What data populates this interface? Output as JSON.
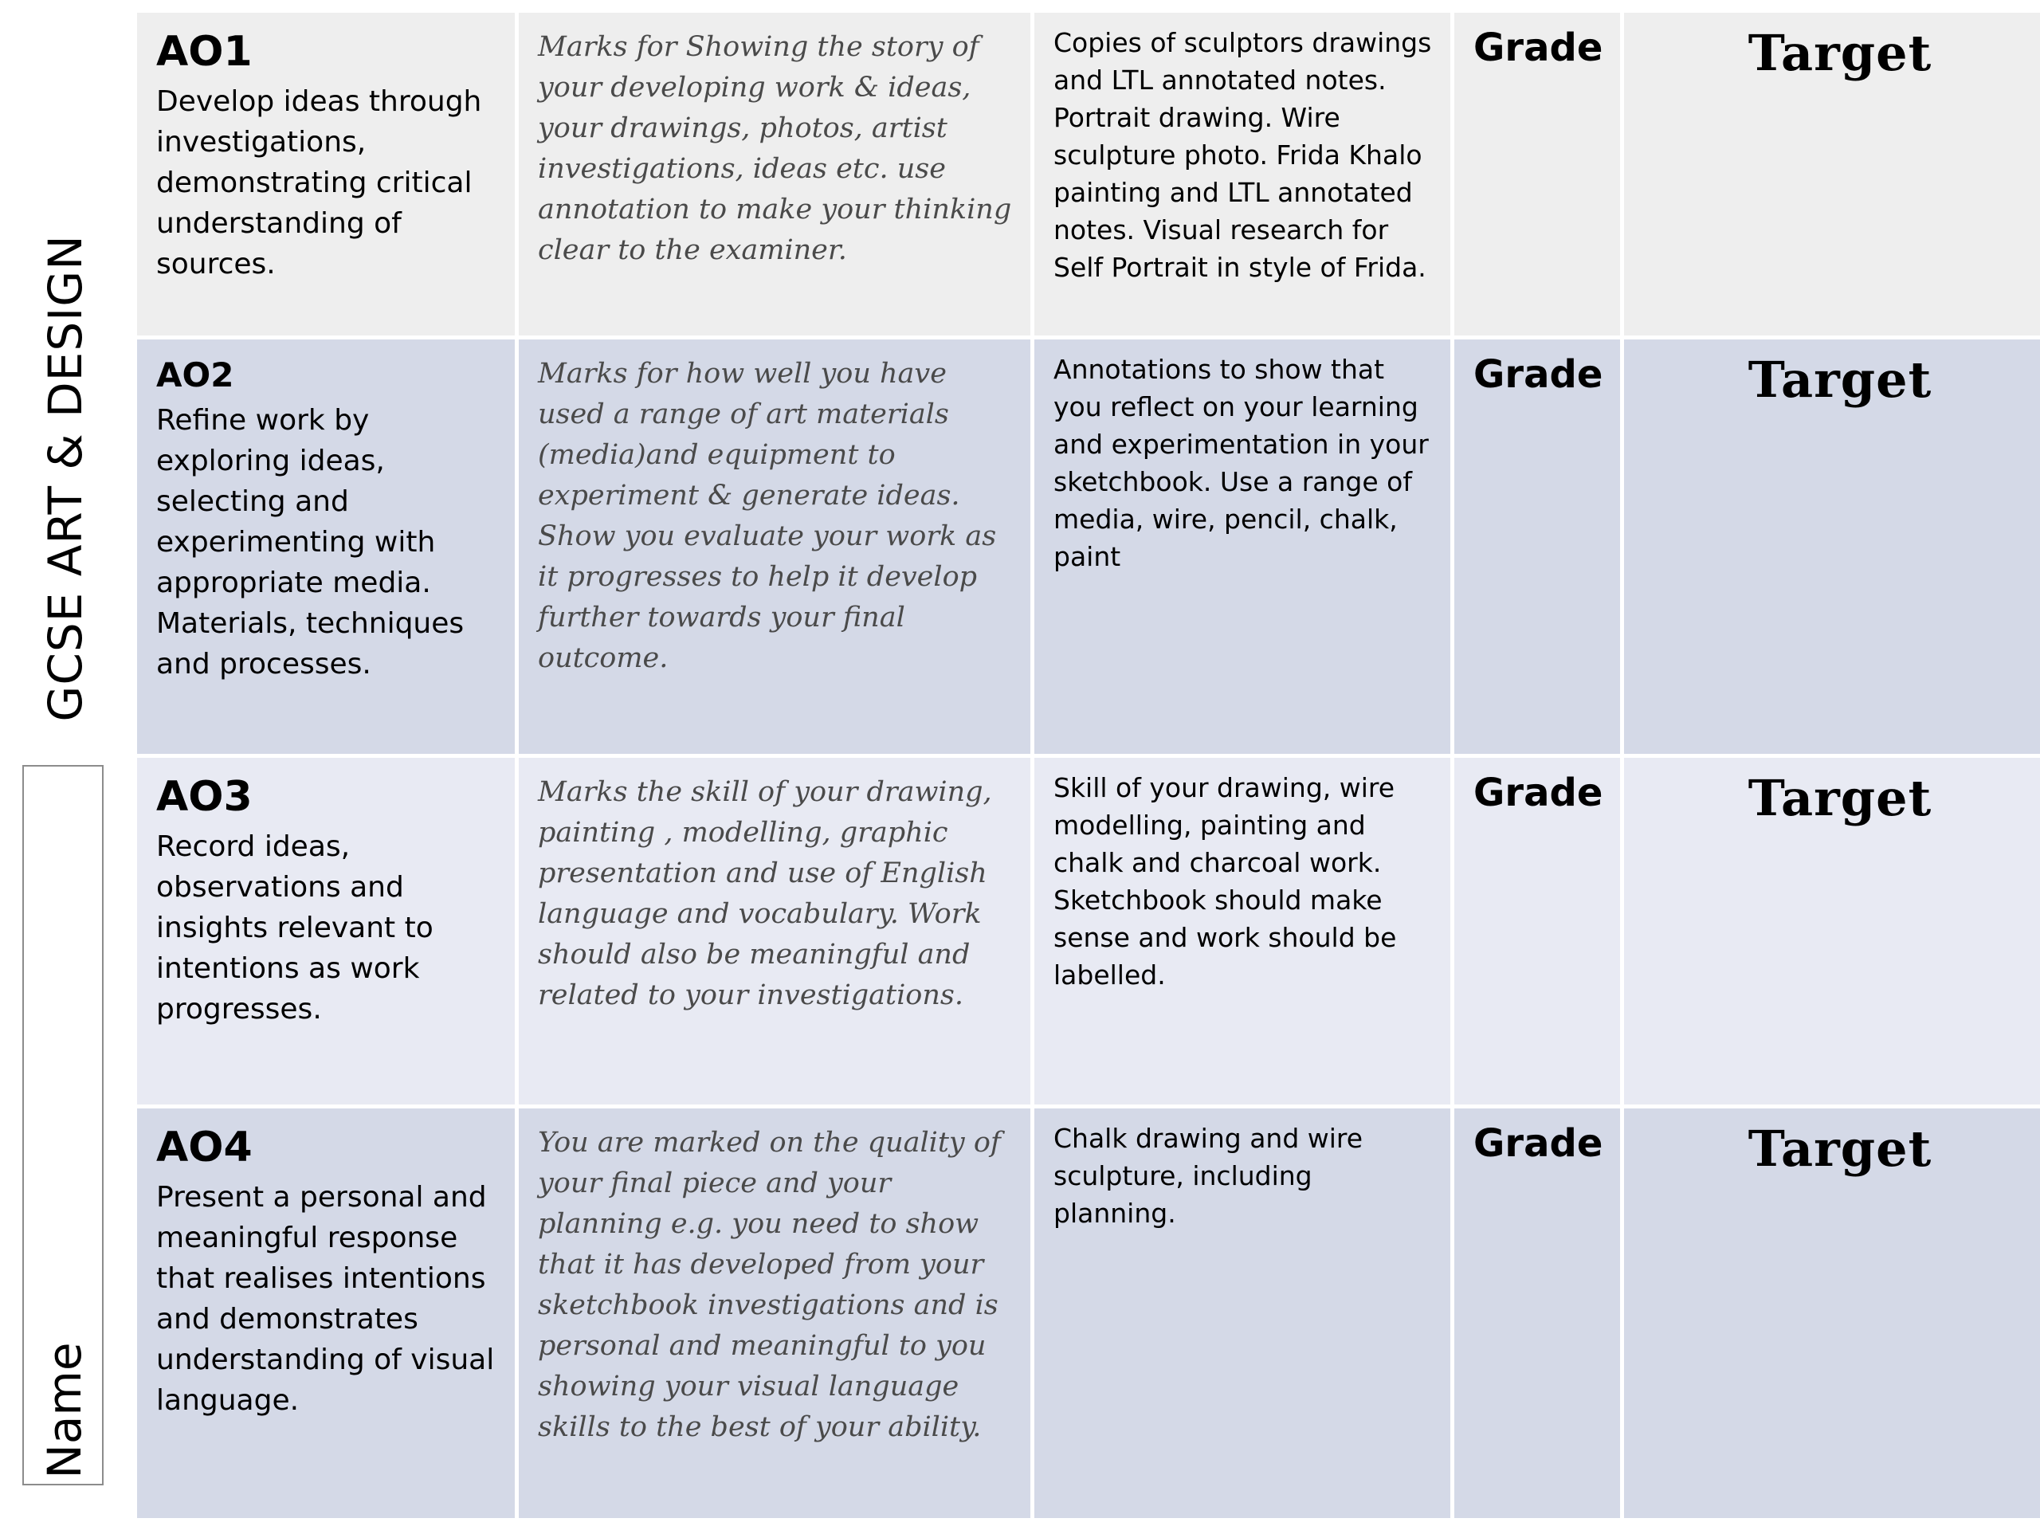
{
  "side_title": "GCSE ART & DESIGN",
  "name_label": "Name",
  "rows": [
    {
      "code": "AO1",
      "description": "Develop ideas through investigations, demonstrating critical understanding of sources.",
      "guidance": "Marks for Showing the story of your developing work & ideas, your drawings, photos, artist investigations, ideas etc. use annotation to make your thinking clear to the examiner.",
      "evidence": "Copies of sculptors drawings and LTL annotated notes. Portrait drawing. Wire sculpture photo. Frida Khalo painting and LTL annotated notes. Visual research for Self Portrait in style of Frida.",
      "grade_label": "Grade",
      "target_label": "Target"
    },
    {
      "code": "AO2",
      "description": "Refine work by exploring ideas, selecting and experimenting with appropriate media. Materials, techniques and processes.",
      "guidance": "Marks for how well you have used a range of art materials (media)and equipment to experiment & generate ideas. Show you evaluate your work as it progresses to help it develop further towards your final outcome.",
      "evidence": "Annotations to show that you reflect on your learning and experimentation in your sketchbook. Use a range of media, wire, pencil, chalk, paint",
      "grade_label": "Grade",
      "target_label": "Target"
    },
    {
      "code": "AO3",
      "description": "Record ideas, observations and insights relevant to intentions as work progresses.",
      "guidance": "Marks the skill of your drawing, painting , modelling, graphic presentation and use of English language and vocabulary. Work should also be meaningful and related to your investigations.",
      "evidence": "Skill of your drawing, wire modelling, painting and chalk and charcoal work. Sketchbook should make sense and work should be labelled.",
      "grade_label": "Grade",
      "target_label": "Target"
    },
    {
      "code": "AO4",
      "description": "Present a personal and meaningful response that realises intentions and demonstrates understanding of visual language.",
      "guidance": "You are marked on the quality of your final piece and your planning e.g. you need to show that it has developed from your sketchbook investigations and is personal and meaningful to you showing your visual language skills to the best of your ability.",
      "evidence": "Chalk drawing and wire sculpture, including planning.",
      "grade_label": "Grade",
      "target_label": "Target"
    }
  ],
  "colors": {
    "row_1": "#eeeeee",
    "row_2": "#d4d9e7",
    "row_3": "#e8eaf3",
    "row_4": "#d4d9e7"
  }
}
